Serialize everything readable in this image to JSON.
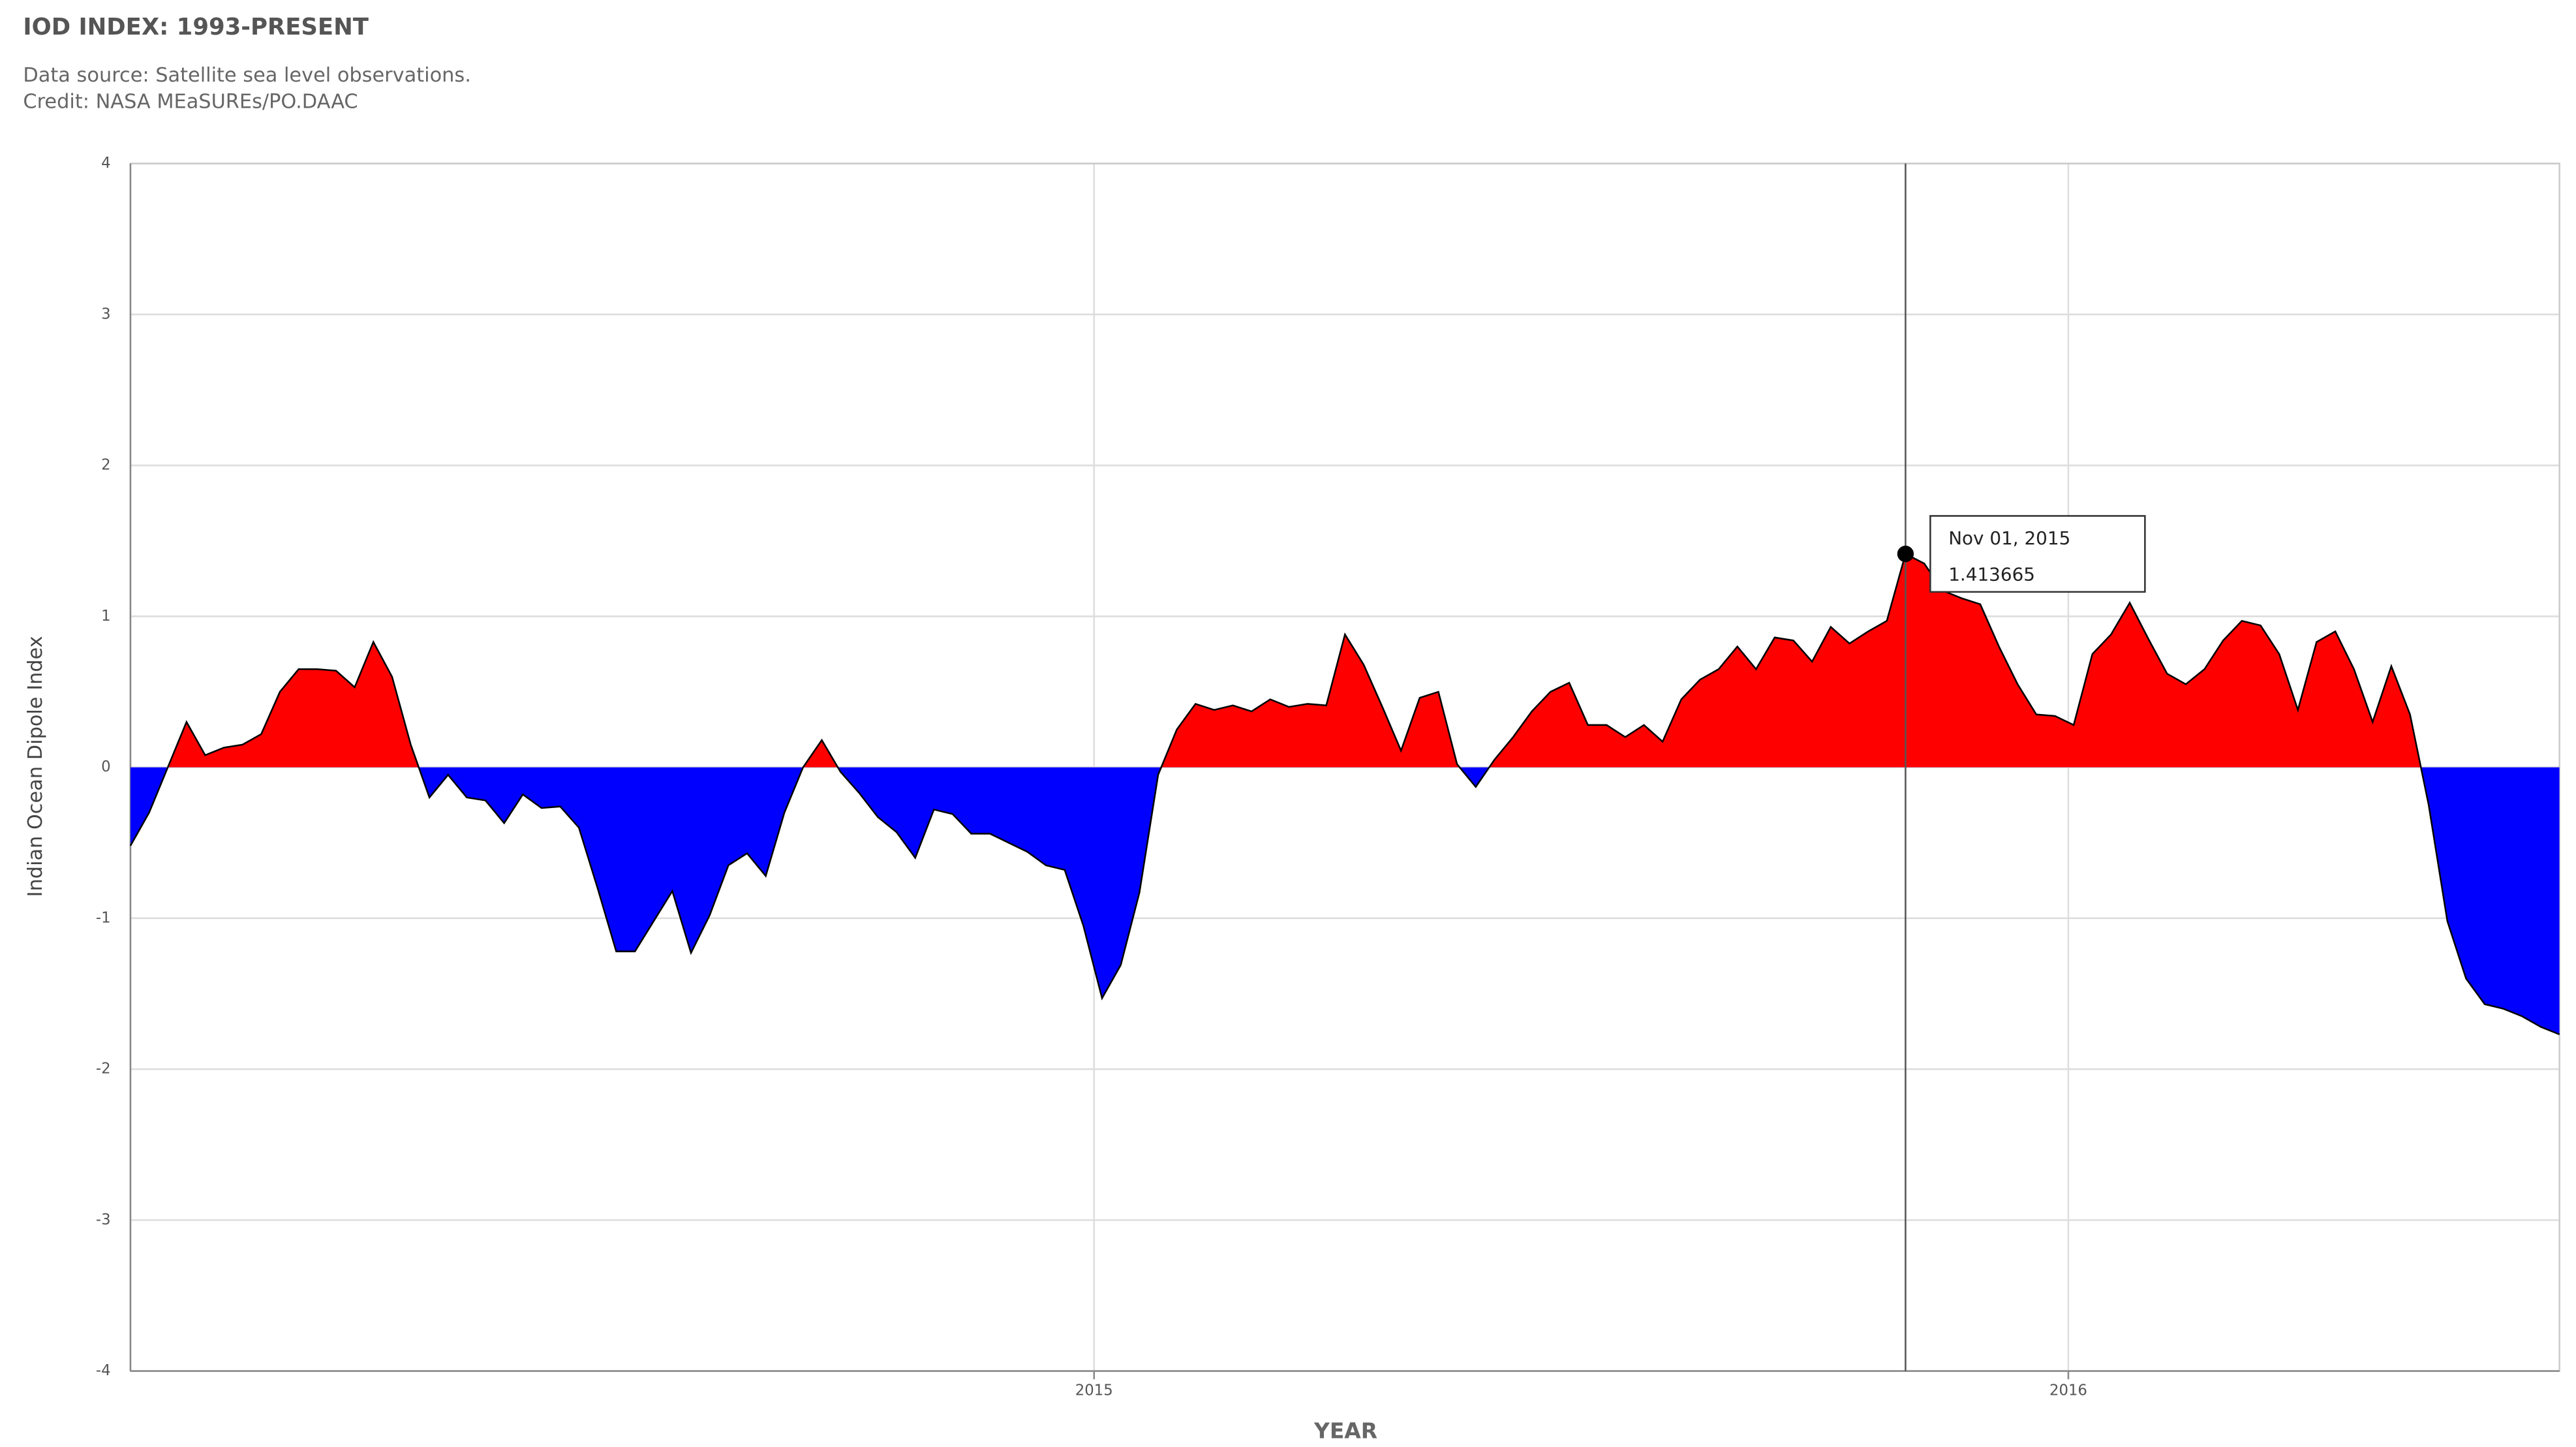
{
  "chart_data": {
    "type": "area",
    "title": "IOD INDEX: 1993-PRESENT",
    "subtitle": [
      "Data source: Satellite sea level observations.",
      "Credit: NASA MEaSUREs/PO.DAAC"
    ],
    "x_label": "YEAR",
    "y_label": "Indian Ocean Dipole Index",
    "x": [
      "2014-01-05",
      "2014-01-12",
      "2014-01-19",
      "2014-01-26",
      "2014-02-02",
      "2014-02-09",
      "2014-02-16",
      "2014-02-23",
      "2014-03-02",
      "2014-03-09",
      "2014-03-16",
      "2014-03-23",
      "2014-03-30",
      "2014-04-06",
      "2014-04-13",
      "2014-04-20",
      "2014-04-27",
      "2014-05-04",
      "2014-05-11",
      "2014-05-18",
      "2014-05-25",
      "2014-06-01",
      "2014-06-08",
      "2014-06-15",
      "2014-06-22",
      "2014-06-29",
      "2014-07-06",
      "2014-07-13",
      "2014-07-20",
      "2014-07-27",
      "2014-08-03",
      "2014-08-10",
      "2014-08-17",
      "2014-08-24",
      "2014-08-31",
      "2014-09-07",
      "2014-09-14",
      "2014-09-21",
      "2014-09-28",
      "2014-10-05",
      "2014-10-12",
      "2014-10-19",
      "2014-10-26",
      "2014-11-02",
      "2014-11-09",
      "2014-11-16",
      "2014-11-23",
      "2014-11-30",
      "2014-12-07",
      "2014-12-14",
      "2014-12-21",
      "2014-12-28",
      "2015-01-04",
      "2015-01-11",
      "2015-01-18",
      "2015-01-25",
      "2015-02-01",
      "2015-02-08",
      "2015-02-15",
      "2015-02-22",
      "2015-03-01",
      "2015-03-08",
      "2015-03-15",
      "2015-03-22",
      "2015-03-29",
      "2015-04-05",
      "2015-04-12",
      "2015-04-19",
      "2015-04-26",
      "2015-05-03",
      "2015-05-10",
      "2015-05-17",
      "2015-05-24",
      "2015-05-31",
      "2015-06-07",
      "2015-06-14",
      "2015-06-21",
      "2015-06-28",
      "2015-07-05",
      "2015-07-12",
      "2015-07-19",
      "2015-07-26",
      "2015-08-02",
      "2015-08-09",
      "2015-08-16",
      "2015-08-23",
      "2015-08-30",
      "2015-09-06",
      "2015-09-13",
      "2015-09-20",
      "2015-09-27",
      "2015-10-04",
      "2015-10-11",
      "2015-10-18",
      "2015-10-25",
      "2015-11-01",
      "2015-11-08",
      "2015-11-15",
      "2015-11-22",
      "2015-11-29",
      "2015-12-06",
      "2015-12-13",
      "2015-12-20",
      "2015-12-27",
      "2016-01-03",
      "2016-01-10",
      "2016-01-17",
      "2016-01-24",
      "2016-01-31",
      "2016-02-07",
      "2016-02-14",
      "2016-02-21",
      "2016-02-28",
      "2016-03-06",
      "2016-03-13",
      "2016-03-20",
      "2016-03-27",
      "2016-04-03",
      "2016-04-10",
      "2016-04-17",
      "2016-04-24",
      "2016-05-01",
      "2016-05-08",
      "2016-05-15",
      "2016-05-22",
      "2016-05-29",
      "2016-06-05",
      "2016-06-12",
      "2016-06-19",
      "2016-06-26",
      "2016-07-03"
    ],
    "values": [
      -0.52,
      -0.3,
      0.0,
      0.3,
      0.08,
      0.13,
      0.15,
      0.22,
      0.5,
      0.65,
      0.65,
      0.64,
      0.53,
      0.83,
      0.6,
      0.15,
      -0.2,
      -0.05,
      -0.2,
      -0.22,
      -0.37,
      -0.18,
      -0.27,
      -0.26,
      -0.4,
      -0.8,
      -1.22,
      -1.22,
      -1.02,
      -0.82,
      -1.23,
      -0.98,
      -0.65,
      -0.57,
      -0.72,
      -0.3,
      0.0,
      0.18,
      -0.03,
      -0.17,
      -0.33,
      -0.43,
      -0.6,
      -0.28,
      -0.31,
      -0.44,
      -0.44,
      -0.5,
      -0.56,
      -0.65,
      -0.68,
      -1.05,
      -1.53,
      -1.31,
      -0.83,
      -0.05,
      0.25,
      0.42,
      0.38,
      0.41,
      0.37,
      0.45,
      0.4,
      0.42,
      0.41,
      0.88,
      0.68,
      0.4,
      0.11,
      0.46,
      0.5,
      0.02,
      -0.13,
      0.05,
      0.2,
      0.37,
      0.5,
      0.56,
      0.28,
      0.28,
      0.2,
      0.28,
      0.17,
      0.45,
      0.58,
      0.65,
      0.8,
      0.65,
      0.86,
      0.84,
      0.7,
      0.93,
      0.82,
      0.9,
      0.97,
      1.413665,
      1.35,
      1.17,
      1.12,
      1.08,
      0.8,
      0.55,
      0.35,
      0.34,
      0.28,
      0.75,
      0.88,
      1.09,
      0.85,
      0.62,
      0.55,
      0.65,
      0.84,
      0.97,
      0.94,
      0.75,
      0.38,
      0.83,
      0.9,
      0.65,
      0.3,
      0.67,
      0.35,
      -0.25,
      -1.02,
      -1.4,
      -1.57,
      -1.6,
      -1.65,
      -1.72,
      -1.77
    ],
    "positive_color": "#ff0000",
    "negative_color": "#0000ff",
    "line_color": "#000000",
    "xlim": [
      "2014-01-05",
      "2016-07-03"
    ],
    "xticks": [
      {
        "value": "2015-01-01",
        "label": "2015"
      },
      {
        "value": "2016-01-01",
        "label": "2016"
      }
    ],
    "ylim": [
      -4,
      4
    ],
    "yticks": [
      -4,
      -3,
      -2,
      -1,
      0,
      1,
      2,
      3,
      4
    ],
    "grid": true,
    "tooltip": {
      "point": 95,
      "date_label": "Nov 01, 2015"
    }
  }
}
